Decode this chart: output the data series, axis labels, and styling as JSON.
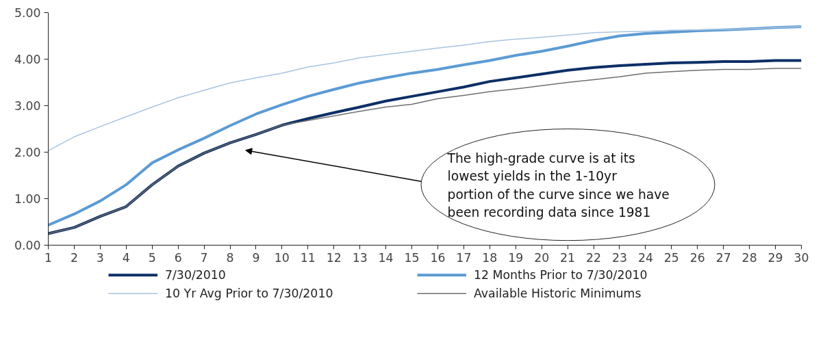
{
  "chart_data": {
    "type": "line",
    "x": [
      1,
      2,
      3,
      4,
      5,
      6,
      7,
      8,
      9,
      10,
      11,
      12,
      13,
      14,
      15,
      16,
      17,
      18,
      19,
      20,
      21,
      22,
      23,
      24,
      25,
      26,
      27,
      28,
      29,
      30
    ],
    "series": [
      {
        "name": "7/30/2010",
        "color": "#0d2f66",
        "values": [
          0.25,
          0.38,
          0.62,
          0.83,
          1.3,
          1.7,
          1.98,
          2.2,
          2.38,
          2.58,
          2.72,
          2.85,
          2.97,
          3.1,
          3.2,
          3.3,
          3.4,
          3.52,
          3.6,
          3.68,
          3.76,
          3.82,
          3.86,
          3.89,
          3.92,
          3.93,
          3.95,
          3.95,
          3.97,
          3.97
        ]
      },
      {
        "name": "12 Months Prior to 7/30/2010",
        "color": "#5b9bd5",
        "values": [
          0.43,
          0.67,
          0.95,
          1.3,
          1.77,
          2.05,
          2.3,
          2.57,
          2.82,
          3.02,
          3.2,
          3.35,
          3.49,
          3.6,
          3.7,
          3.78,
          3.88,
          3.97,
          4.08,
          4.17,
          4.28,
          4.4,
          4.5,
          4.55,
          4.58,
          4.61,
          4.63,
          4.65,
          4.68,
          4.7
        ]
      },
      {
        "name": "10 Yr Avg Prior to 7/30/2010",
        "color": "#a9c4e0",
        "values": [
          2.03,
          2.33,
          2.55,
          2.76,
          2.97,
          3.17,
          3.33,
          3.49,
          3.6,
          3.7,
          3.83,
          3.92,
          4.03,
          4.1,
          4.17,
          4.24,
          4.3,
          4.38,
          4.43,
          4.47,
          4.52,
          4.57,
          4.59,
          4.6,
          4.62,
          4.63,
          4.64,
          4.65,
          4.68,
          4.7
        ]
      },
      {
        "name": "Available Historic Minimums",
        "color": "#6e6e6e",
        "values": [
          0.25,
          0.38,
          0.62,
          0.83,
          1.3,
          1.7,
          1.98,
          2.2,
          2.38,
          2.58,
          2.68,
          2.78,
          2.88,
          2.97,
          3.03,
          3.15,
          3.22,
          3.3,
          3.36,
          3.43,
          3.5,
          3.56,
          3.62,
          3.7,
          3.73,
          3.76,
          3.78,
          3.78,
          3.8,
          3.8
        ]
      }
    ],
    "xlim": [
      1,
      30
    ],
    "xticks": [
      1,
      2,
      3,
      4,
      5,
      6,
      7,
      8,
      9,
      10,
      11,
      12,
      13,
      14,
      15,
      16,
      17,
      18,
      19,
      20,
      21,
      22,
      23,
      24,
      25,
      26,
      27,
      28,
      29,
      30
    ],
    "ylim": [
      0,
      5
    ],
    "yticks": [
      {
        "value": 0,
        "label": "0.00"
      },
      {
        "value": 1,
        "label": "1.00"
      },
      {
        "value": 2,
        "label": "2.00"
      },
      {
        "value": 3,
        "label": "3.00"
      },
      {
        "value": 4,
        "label": "4.00"
      },
      {
        "value": 5,
        "label": "5.00"
      }
    ],
    "annotations": [
      "The high-grade curve is at its lowest yields in the 1-10yr portion of the curve since we have been recording data since 1981"
    ],
    "legend": "bottom",
    "grid": false,
    "marker": "none",
    "line_style": "solid"
  }
}
